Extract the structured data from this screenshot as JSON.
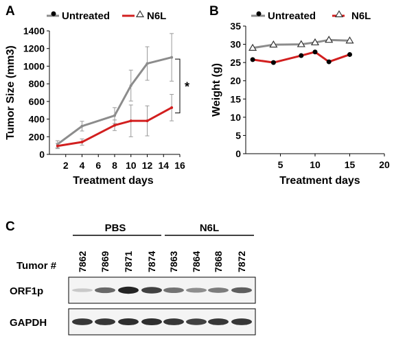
{
  "panels": {
    "a": {
      "letter": "A"
    },
    "b": {
      "letter": "B"
    },
    "c": {
      "letter": "C"
    }
  },
  "colors": {
    "untreated": "#8c8c8c",
    "n6l": "#d21f1f",
    "axis": "#000000",
    "blot_band": "#111111"
  },
  "chart_data": [
    {
      "type": "line",
      "panel": "A",
      "ylabel": "Tumor Size (mm3)",
      "xlabel": "Treatment days",
      "xlim": [
        0,
        16
      ],
      "ylim": [
        0,
        1400
      ],
      "xticks": [
        "2",
        "4",
        "6",
        "8",
        "10",
        "12",
        "14",
        "16"
      ],
      "yticks": [
        "0",
        "200",
        "400",
        "600",
        "800",
        "1000",
        "1200",
        "1400"
      ],
      "legend": {
        "placement": "top"
      },
      "annotation": "*",
      "series": [
        {
          "name": "Untreated",
          "marker": "circle",
          "x": [
            1,
            4,
            8,
            10,
            12,
            15
          ],
          "y": [
            115,
            320,
            440,
            780,
            1030,
            1100
          ],
          "err": [
            40,
            55,
            90,
            175,
            190,
            270
          ]
        },
        {
          "name": "N6L",
          "marker": "triangle",
          "x": [
            1,
            4,
            8,
            10,
            12,
            15
          ],
          "y": [
            95,
            140,
            330,
            380,
            380,
            530
          ],
          "err": [
            30,
            35,
            60,
            180,
            170,
            150
          ]
        }
      ]
    },
    {
      "type": "line",
      "panel": "B",
      "ylabel": "Weight (g)",
      "xlabel": "Treatment  days",
      "xlim": [
        0,
        20
      ],
      "ylim": [
        0,
        35
      ],
      "xticks": [
        "5",
        "10",
        "15",
        "20"
      ],
      "yticks": [
        "0",
        "5",
        "10",
        "15",
        "20",
        "25",
        "30",
        "35"
      ],
      "legend": {
        "placement": "top"
      },
      "series": [
        {
          "name": "Untreated",
          "marker": "triangle",
          "x": [
            1,
            4,
            8,
            10,
            12,
            15
          ],
          "y": [
            29,
            29.9,
            30,
            30.5,
            31.2,
            31
          ]
        },
        {
          "name": "N6L",
          "marker": "circle",
          "x": [
            1,
            4,
            8,
            10,
            12,
            15
          ],
          "y": [
            25.8,
            25,
            26.9,
            27.9,
            25.2,
            27.2
          ]
        }
      ]
    }
  ],
  "blot": {
    "group_labels": [
      "PBS",
      "N6L"
    ],
    "tumor_label": "Tumor #",
    "tumor_ids": [
      "7862",
      "7869",
      "7871",
      "7874",
      "7863",
      "7864",
      "7868",
      "7872"
    ],
    "rows": [
      {
        "label": "ORF1p",
        "intensity": [
          0.05,
          0.55,
          0.9,
          0.75,
          0.5,
          0.35,
          0.45,
          0.6
        ]
      },
      {
        "label": "GAPDH",
        "intensity": [
          0.8,
          0.8,
          0.85,
          0.85,
          0.8,
          0.75,
          0.8,
          0.8
        ]
      }
    ]
  }
}
